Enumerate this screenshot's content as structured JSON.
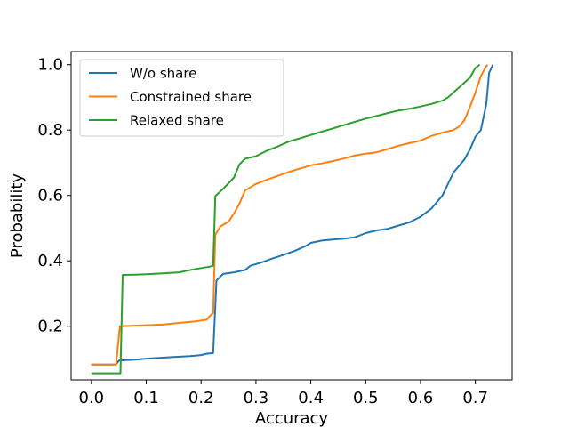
{
  "chart_data": {
    "type": "line",
    "title": "",
    "xlabel": "Accuracy",
    "ylabel": "Probability",
    "xlim": [
      -0.037,
      0.767
    ],
    "ylim": [
      0.036,
      1.04
    ],
    "xticks": [
      0.0,
      0.1,
      0.2,
      0.3,
      0.4,
      0.5,
      0.6,
      0.7
    ],
    "xtick_labels": [
      "0.0",
      "0.1",
      "0.2",
      "0.3",
      "0.4",
      "0.5",
      "0.6",
      "0.7"
    ],
    "yticks": [
      0.2,
      0.4,
      0.6,
      0.8,
      1.0
    ],
    "ytick_labels": [
      "0.2",
      "0.4",
      "0.6",
      "0.8",
      "1.0"
    ],
    "grid": false,
    "legend_position": "upper-left",
    "series": [
      {
        "name": "W/o share",
        "color": "#1f77b4",
        "points": [
          [
            0.0,
            0.083
          ],
          [
            0.045,
            0.083
          ],
          [
            0.05,
            0.095
          ],
          [
            0.06,
            0.096
          ],
          [
            0.08,
            0.098
          ],
          [
            0.1,
            0.101
          ],
          [
            0.12,
            0.103
          ],
          [
            0.15,
            0.106
          ],
          [
            0.18,
            0.109
          ],
          [
            0.2,
            0.112
          ],
          [
            0.21,
            0.116
          ],
          [
            0.222,
            0.118
          ],
          [
            0.228,
            0.34
          ],
          [
            0.24,
            0.36
          ],
          [
            0.26,
            0.365
          ],
          [
            0.28,
            0.372
          ],
          [
            0.29,
            0.385
          ],
          [
            0.31,
            0.395
          ],
          [
            0.33,
            0.407
          ],
          [
            0.35,
            0.418
          ],
          [
            0.37,
            0.43
          ],
          [
            0.39,
            0.445
          ],
          [
            0.4,
            0.455
          ],
          [
            0.42,
            0.462
          ],
          [
            0.44,
            0.465
          ],
          [
            0.46,
            0.468
          ],
          [
            0.48,
            0.472
          ],
          [
            0.5,
            0.485
          ],
          [
            0.52,
            0.493
          ],
          [
            0.54,
            0.498
          ],
          [
            0.56,
            0.508
          ],
          [
            0.58,
            0.518
          ],
          [
            0.6,
            0.535
          ],
          [
            0.62,
            0.56
          ],
          [
            0.64,
            0.6
          ],
          [
            0.66,
            0.67
          ],
          [
            0.68,
            0.71
          ],
          [
            0.69,
            0.74
          ],
          [
            0.7,
            0.78
          ],
          [
            0.71,
            0.8
          ],
          [
            0.72,
            0.88
          ],
          [
            0.725,
            0.975
          ],
          [
            0.732,
            1.0
          ]
        ]
      },
      {
        "name": "Constrained share",
        "color": "#ff7f0e",
        "points": [
          [
            0.0,
            0.083
          ],
          [
            0.045,
            0.083
          ],
          [
            0.052,
            0.2
          ],
          [
            0.08,
            0.202
          ],
          [
            0.1,
            0.203
          ],
          [
            0.13,
            0.205
          ],
          [
            0.16,
            0.21
          ],
          [
            0.19,
            0.215
          ],
          [
            0.21,
            0.22
          ],
          [
            0.218,
            0.235
          ],
          [
            0.222,
            0.24
          ],
          [
            0.226,
            0.48
          ],
          [
            0.235,
            0.505
          ],
          [
            0.25,
            0.52
          ],
          [
            0.26,
            0.545
          ],
          [
            0.27,
            0.575
          ],
          [
            0.28,
            0.615
          ],
          [
            0.3,
            0.635
          ],
          [
            0.32,
            0.648
          ],
          [
            0.34,
            0.66
          ],
          [
            0.36,
            0.672
          ],
          [
            0.38,
            0.682
          ],
          [
            0.4,
            0.692
          ],
          [
            0.42,
            0.698
          ],
          [
            0.44,
            0.705
          ],
          [
            0.46,
            0.713
          ],
          [
            0.48,
            0.722
          ],
          [
            0.5,
            0.728
          ],
          [
            0.52,
            0.732
          ],
          [
            0.54,
            0.742
          ],
          [
            0.56,
            0.752
          ],
          [
            0.58,
            0.76
          ],
          [
            0.6,
            0.768
          ],
          [
            0.62,
            0.782
          ],
          [
            0.64,
            0.792
          ],
          [
            0.66,
            0.8
          ],
          [
            0.67,
            0.81
          ],
          [
            0.68,
            0.83
          ],
          [
            0.69,
            0.87
          ],
          [
            0.7,
            0.915
          ],
          [
            0.71,
            0.965
          ],
          [
            0.718,
            0.99
          ],
          [
            0.722,
            1.0
          ]
        ]
      },
      {
        "name": "Relaxed share",
        "color": "#2ca02c",
        "points": [
          [
            0.0,
            0.056
          ],
          [
            0.053,
            0.056
          ],
          [
            0.057,
            0.357
          ],
          [
            0.08,
            0.358
          ],
          [
            0.1,
            0.359
          ],
          [
            0.13,
            0.362
          ],
          [
            0.16,
            0.365
          ],
          [
            0.18,
            0.372
          ],
          [
            0.2,
            0.378
          ],
          [
            0.215,
            0.382
          ],
          [
            0.222,
            0.385
          ],
          [
            0.226,
            0.598
          ],
          [
            0.24,
            0.62
          ],
          [
            0.26,
            0.655
          ],
          [
            0.27,
            0.695
          ],
          [
            0.28,
            0.712
          ],
          [
            0.3,
            0.72
          ],
          [
            0.32,
            0.737
          ],
          [
            0.34,
            0.75
          ],
          [
            0.36,
            0.765
          ],
          [
            0.38,
            0.775
          ],
          [
            0.4,
            0.785
          ],
          [
            0.42,
            0.795
          ],
          [
            0.44,
            0.805
          ],
          [
            0.46,
            0.815
          ],
          [
            0.48,
            0.825
          ],
          [
            0.5,
            0.835
          ],
          [
            0.52,
            0.843
          ],
          [
            0.54,
            0.852
          ],
          [
            0.56,
            0.86
          ],
          [
            0.58,
            0.865
          ],
          [
            0.6,
            0.872
          ],
          [
            0.62,
            0.88
          ],
          [
            0.64,
            0.89
          ],
          [
            0.65,
            0.9
          ],
          [
            0.67,
            0.93
          ],
          [
            0.69,
            0.96
          ],
          [
            0.7,
            0.99
          ],
          [
            0.708,
            1.0
          ]
        ]
      }
    ]
  }
}
